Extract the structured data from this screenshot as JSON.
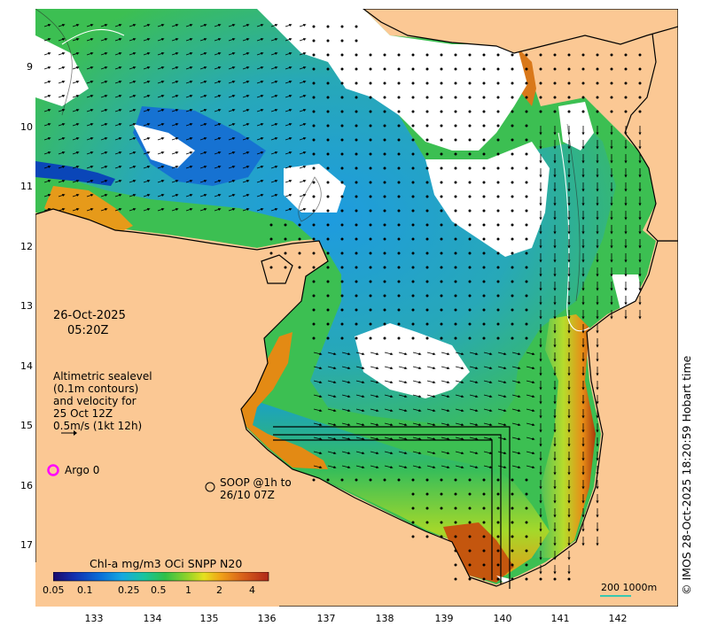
{
  "map": {
    "date": "26-Oct-2025",
    "time": "05:20Z",
    "altimetry_note": [
      "Altimetric sealevel",
      "(0.1m contours)",
      "and velocity for",
      "25 Oct 12Z",
      "0.5m/s (1kt 12h)"
    ],
    "argo_label": "Argo 0",
    "soop_label": [
      "SOOP @1h to",
      "26/10 07Z"
    ],
    "colorbar_title": "Chl-a mg/m3 OCi SNPP N20",
    "colorbar_ticks": [
      "0.05",
      "0.1",
      "0.25",
      "0.5",
      "1",
      "2",
      "4"
    ],
    "scale_label": "200  1000m",
    "credit": "© IMOS 28-Oct-2025 18:20:59 Hobart time",
    "y_ticks": [
      "9",
      "10",
      "11",
      "12",
      "13",
      "14",
      "15",
      "16",
      "17"
    ],
    "x_ticks": [
      "133",
      "134",
      "135",
      "136",
      "137",
      "138",
      "139",
      "140",
      "141",
      "142"
    ],
    "colors": {
      "land": "#fbc894",
      "cloud": "#ffffff",
      "argo": "#ff00ff",
      "scale_line": "#37c8b0",
      "chl_low": "#00008b",
      "chl_blue": "#1a8fdc",
      "chl_green": "#2fbf4a",
      "chl_high": "#b2400e"
    }
  }
}
